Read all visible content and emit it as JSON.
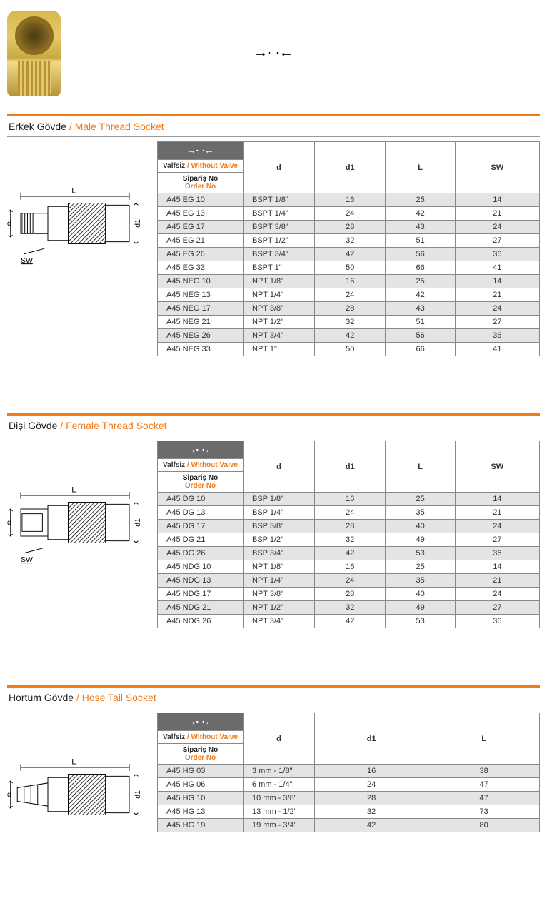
{
  "top_symbol": "→··←",
  "header_labels": {
    "valve_tr": "Valfsiz",
    "valve_en": "/ Without Valve",
    "order_tr": "Sipariş No",
    "order_en": "Order No",
    "symbol": "→··←"
  },
  "diagram_labels": {
    "L": "L",
    "d": "d",
    "d1": "d1",
    "SW": "SW"
  },
  "sections": [
    {
      "title_tr": "Erkek Gövde",
      "title_en": " / Male Thread Socket",
      "columns": [
        "d",
        "d1",
        "L",
        "SW"
      ],
      "rows": [
        [
          "A45 EG 10",
          "BSPT 1/8\"",
          "16",
          "25",
          "14"
        ],
        [
          "A45 EG 13",
          "BSPT 1/4\"",
          "24",
          "42",
          "21"
        ],
        [
          "A45 EG 17",
          "BSPT 3/8\"",
          "28",
          "43",
          "24"
        ],
        [
          "A45 EG 21",
          "BSPT 1/2\"",
          "32",
          "51",
          "27"
        ],
        [
          "A45 EG 26",
          "BSPT 3/4\"",
          "42",
          "56",
          "36"
        ],
        [
          "A45 EG 33",
          "BSPT 1\"",
          "50",
          "66",
          "41"
        ],
        [
          "A45 NEG 10",
          "NPT 1/8\"",
          "16",
          "25",
          "14"
        ],
        [
          "A45 NEG 13",
          "NPT 1/4\"",
          "24",
          "42",
          "21"
        ],
        [
          "A45 NEG 17",
          "NPT 3/8\"",
          "28",
          "43",
          "24"
        ],
        [
          "A45 NEG 21",
          "NPT 1/2\"",
          "32",
          "51",
          "27"
        ],
        [
          "A45 NEG 26",
          "NPT 3/4\"",
          "42",
          "56",
          "36"
        ],
        [
          "A45 NEG 33",
          "NPT 1\"",
          "50",
          "66",
          "41"
        ]
      ]
    },
    {
      "title_tr": "Dişi Gövde",
      "title_en": " / Female Thread Socket",
      "columns": [
        "d",
        "d1",
        "L",
        "SW"
      ],
      "rows": [
        [
          "A45 DG 10",
          "BSP 1/8\"",
          "16",
          "25",
          "14"
        ],
        [
          "A45 DG 13",
          "BSP 1/4\"",
          "24",
          "35",
          "21"
        ],
        [
          "A45 DG 17",
          "BSP 3/8\"",
          "28",
          "40",
          "24"
        ],
        [
          "A45 DG 21",
          "BSP 1/2\"",
          "32",
          "49",
          "27"
        ],
        [
          "A45 DG 26",
          "BSP 3/4\"",
          "42",
          "53",
          "36"
        ],
        [
          "A45 NDG 10",
          "NPT 1/8\"",
          "16",
          "25",
          "14"
        ],
        [
          "A45 NDG 13",
          "NPT 1/4\"",
          "24",
          "35",
          "21"
        ],
        [
          "A45 NDG 17",
          "NPT 3/8\"",
          "28",
          "40",
          "24"
        ],
        [
          "A45 NDG 21",
          "NPT 1/2\"",
          "32",
          "49",
          "27"
        ],
        [
          "A45 NDG 26",
          "NPT 3/4\"",
          "42",
          "53",
          "36"
        ]
      ]
    },
    {
      "title_tr": "Hortum Gövde",
      "title_en": " / Hose Tail Socket",
      "columns": [
        "d",
        "d1",
        "L"
      ],
      "rows": [
        [
          "A45 HG 03",
          "3 mm - 1/8\"",
          "16",
          "38"
        ],
        [
          "A45 HG 06",
          "6 mm - 1/4\"",
          "24",
          "47"
        ],
        [
          "A45 HG 10",
          "10 mm - 3/8\"",
          "28",
          "47"
        ],
        [
          "A45 HG 13",
          "13 mm - 1/2\"",
          "32",
          "73"
        ],
        [
          "A45 HG 19",
          "19 mm - 3/4\"",
          "42",
          "80"
        ]
      ]
    }
  ]
}
